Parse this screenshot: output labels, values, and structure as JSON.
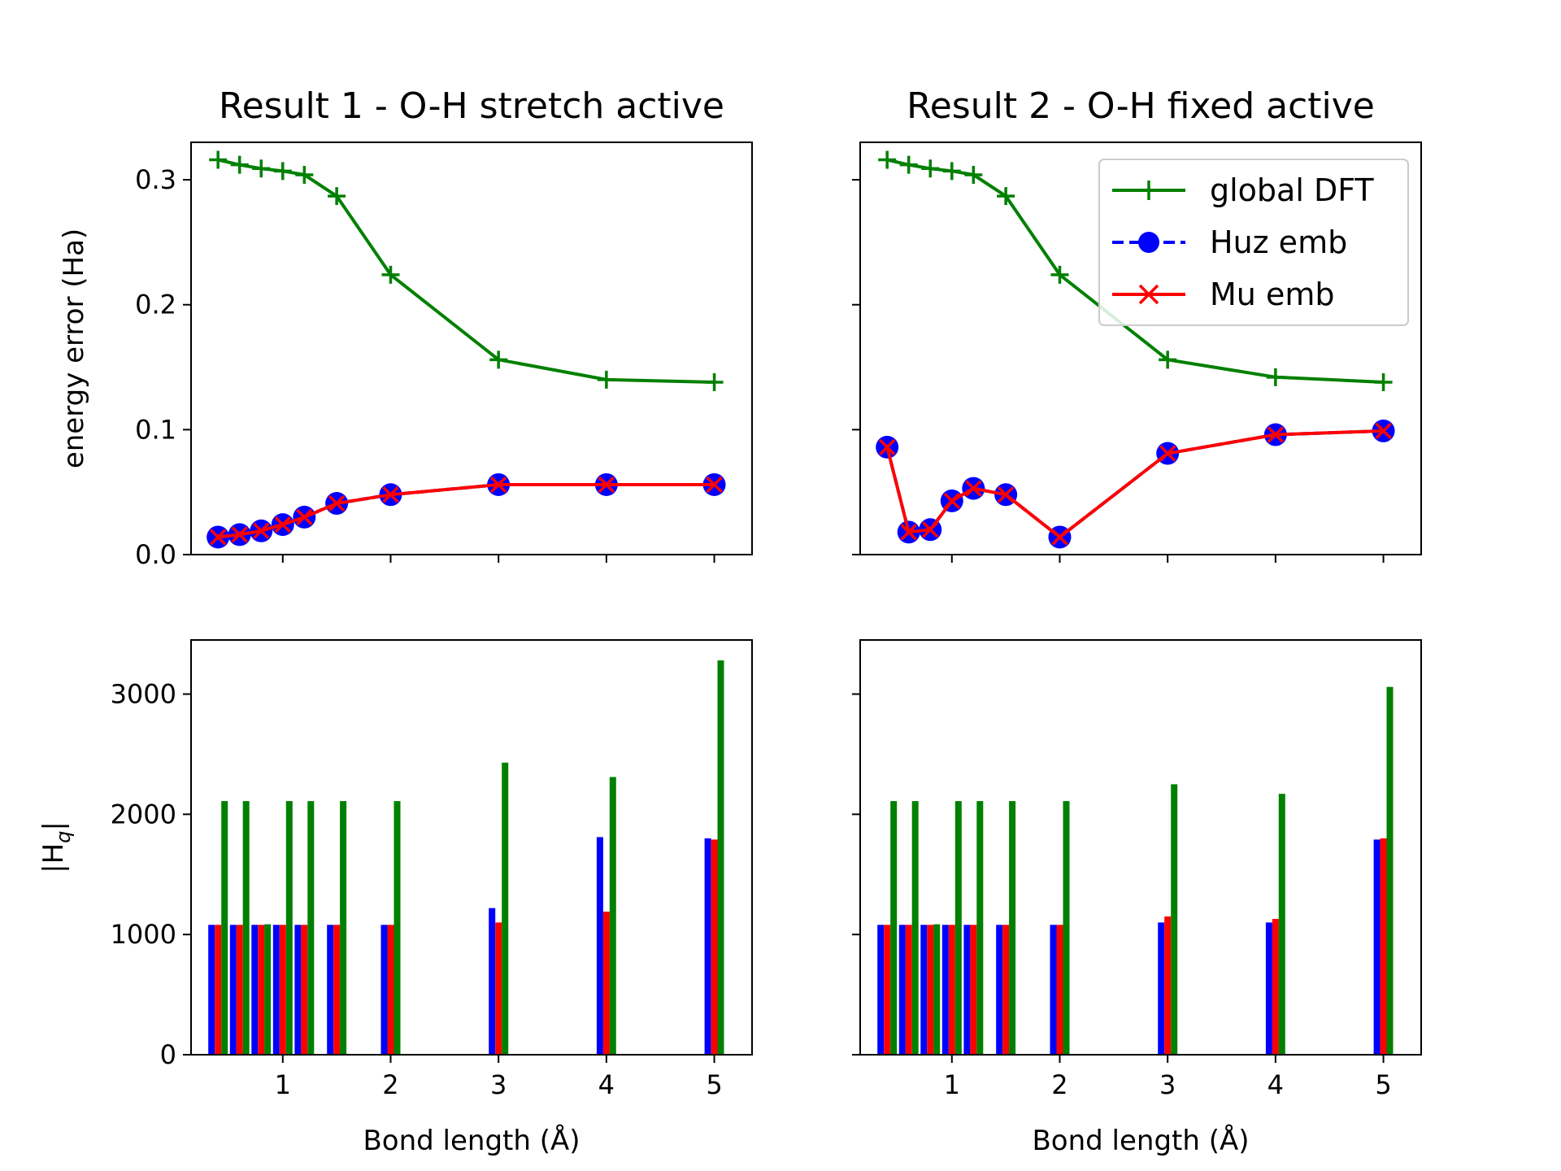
{
  "colors": {
    "green": "#008000",
    "blue": "#0000ff",
    "red": "#ff0000"
  },
  "chart_data": [
    {
      "type": "line",
      "title": "Result 1 - O-H stretch active",
      "xlabel": "",
      "ylabel": "energy error (Ha)",
      "xlim": [
        0.15,
        5.35
      ],
      "ylim": [
        0,
        0.33
      ],
      "xticks": [
        1,
        2,
        3,
        4,
        5
      ],
      "yticks": [
        0.0,
        0.1,
        0.2,
        0.3
      ],
      "ytick_labels": [
        "0.0",
        "0.1",
        "0.2",
        "0.3"
      ],
      "x": [
        0.4,
        0.6,
        0.8,
        1.0,
        1.2,
        1.5,
        2.0,
        3.0,
        4.0,
        5.0
      ],
      "series": [
        {
          "name": "global DFT",
          "color": "#008000",
          "marker": "plus",
          "values": [
            0.316,
            0.312,
            0.309,
            0.307,
            0.304,
            0.287,
            0.224,
            0.156,
            0.14,
            0.138
          ]
        },
        {
          "name": "Huz emb",
          "color": "#0000ff",
          "marker": "circle",
          "values": [
            0.014,
            0.016,
            0.019,
            0.024,
            0.03,
            0.041,
            0.048,
            0.056,
            0.056,
            0.056
          ]
        },
        {
          "name": "Mu emb",
          "color": "#ff0000",
          "marker": "x",
          "values": [
            0.014,
            0.016,
            0.019,
            0.024,
            0.03,
            0.041,
            0.048,
            0.056,
            0.056,
            0.056
          ]
        }
      ]
    },
    {
      "type": "line",
      "title": "Result 2 - O-H fixed active",
      "xlabel": "",
      "ylabel": "",
      "xlim": [
        0.15,
        5.35
      ],
      "ylim": [
        0,
        0.33
      ],
      "xticks": [
        1,
        2,
        3,
        4,
        5
      ],
      "yticks": [
        0.0,
        0.1,
        0.2,
        0.3
      ],
      "ytick_labels": [
        "",
        "",
        "",
        ""
      ],
      "legend": "upper right",
      "x": [
        0.4,
        0.6,
        0.8,
        1.0,
        1.2,
        1.5,
        2.0,
        3.0,
        4.0,
        5.0
      ],
      "series": [
        {
          "name": "global DFT",
          "color": "#008000",
          "marker": "plus",
          "values": [
            0.316,
            0.312,
            0.309,
            0.307,
            0.304,
            0.287,
            0.224,
            0.156,
            0.142,
            0.138
          ]
        },
        {
          "name": "Huz emb",
          "color": "#0000ff",
          "marker": "circle",
          "values": [
            0.086,
            0.018,
            0.02,
            0.043,
            0.053,
            0.048,
            0.014,
            0.081,
            0.096,
            0.099
          ]
        },
        {
          "name": "Mu emb",
          "color": "#ff0000",
          "marker": "x",
          "values": [
            0.086,
            0.018,
            0.02,
            0.043,
            0.053,
            0.048,
            0.014,
            0.081,
            0.096,
            0.099
          ]
        }
      ]
    },
    {
      "type": "bar",
      "title": "",
      "xlabel": "Bond length (Å)",
      "ylabel": "|H_q|",
      "xlim": [
        0.15,
        5.35
      ],
      "ylim": [
        0,
        3450
      ],
      "xticks": [
        1,
        2,
        3,
        4,
        5
      ],
      "yticks": [
        0,
        1000,
        2000,
        3000
      ],
      "ytick_labels": [
        "0",
        "1000",
        "2000",
        "3000"
      ],
      "x": [
        0.4,
        0.6,
        0.8,
        1.0,
        1.2,
        1.5,
        2.0,
        3.0,
        4.0,
        5.0
      ],
      "series": [
        {
          "color": "#0000ff",
          "values": [
            1080,
            1080,
            1080,
            1080,
            1080,
            1080,
            1080,
            1220,
            1810,
            1800
          ]
        },
        {
          "color": "#ff0000",
          "values": [
            1080,
            1080,
            1080,
            1080,
            1080,
            1080,
            1080,
            1100,
            1190,
            1790
          ]
        },
        {
          "color": "#008000",
          "values": [
            2110,
            2110,
            1085,
            2110,
            2110,
            2110,
            2110,
            2430,
            2310,
            3280
          ]
        }
      ]
    },
    {
      "type": "bar",
      "title": "",
      "xlabel": "Bond length (Å)",
      "ylabel": "",
      "xlim": [
        0.15,
        5.35
      ],
      "ylim": [
        0,
        3450
      ],
      "xticks": [
        1,
        2,
        3,
        4,
        5
      ],
      "yticks": [
        0,
        1000,
        2000,
        3000
      ],
      "ytick_labels": [
        "",
        "",
        "",
        ""
      ],
      "x": [
        0.4,
        0.6,
        0.8,
        1.0,
        1.2,
        1.5,
        2.0,
        3.0,
        4.0,
        5.0
      ],
      "series": [
        {
          "color": "#0000ff",
          "values": [
            1080,
            1080,
            1080,
            1080,
            1080,
            1080,
            1080,
            1100,
            1100,
            1790
          ]
        },
        {
          "color": "#ff0000",
          "values": [
            1080,
            1080,
            1080,
            1080,
            1080,
            1080,
            1080,
            1150,
            1130,
            1800
          ]
        },
        {
          "color": "#008000",
          "values": [
            2110,
            2110,
            1085,
            2110,
            2110,
            2110,
            2110,
            2250,
            2170,
            3060
          ]
        }
      ]
    }
  ]
}
